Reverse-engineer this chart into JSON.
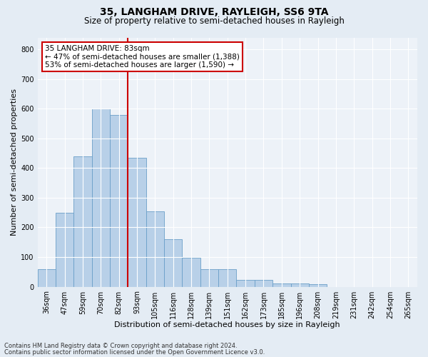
{
  "title": "35, LANGHAM DRIVE, RAYLEIGH, SS6 9TA",
  "subtitle": "Size of property relative to semi-detached houses in Rayleigh",
  "xlabel": "Distribution of semi-detached houses by size in Rayleigh",
  "ylabel": "Number of semi-detached properties",
  "categories": [
    "36sqm",
    "47sqm",
    "59sqm",
    "70sqm",
    "82sqm",
    "93sqm",
    "105sqm",
    "116sqm",
    "128sqm",
    "139sqm",
    "151sqm",
    "162sqm",
    "173sqm",
    "185sqm",
    "196sqm",
    "208sqm",
    "219sqm",
    "231sqm",
    "242sqm",
    "254sqm",
    "265sqm"
  ],
  "values": [
    60,
    250,
    440,
    600,
    580,
    435,
    255,
    160,
    98,
    60,
    60,
    23,
    23,
    12,
    10,
    8,
    0,
    0,
    0,
    0,
    0
  ],
  "bar_color": "#b8d0e8",
  "bar_edge_color": "#6a9fc8",
  "vline_color": "#cc0000",
  "vline_x_index": 4.5,
  "annotation_text": "35 LANGHAM DRIVE: 83sqm\n← 47% of semi-detached houses are smaller (1,388)\n53% of semi-detached houses are larger (1,590) →",
  "annotation_box_color": "#ffffff",
  "annotation_box_edge": "#cc0000",
  "ylim": [
    0,
    840
  ],
  "yticks": [
    0,
    100,
    200,
    300,
    400,
    500,
    600,
    700,
    800
  ],
  "footer_line1": "Contains HM Land Registry data © Crown copyright and database right 2024.",
  "footer_line2": "Contains public sector information licensed under the Open Government Licence v3.0.",
  "bg_color": "#e4ecf4",
  "plot_bg_color": "#edf2f8",
  "title_fontsize": 10,
  "subtitle_fontsize": 8.5,
  "axis_label_fontsize": 8,
  "tick_fontsize": 7,
  "annotation_fontsize": 7.5,
  "footer_fontsize": 6
}
